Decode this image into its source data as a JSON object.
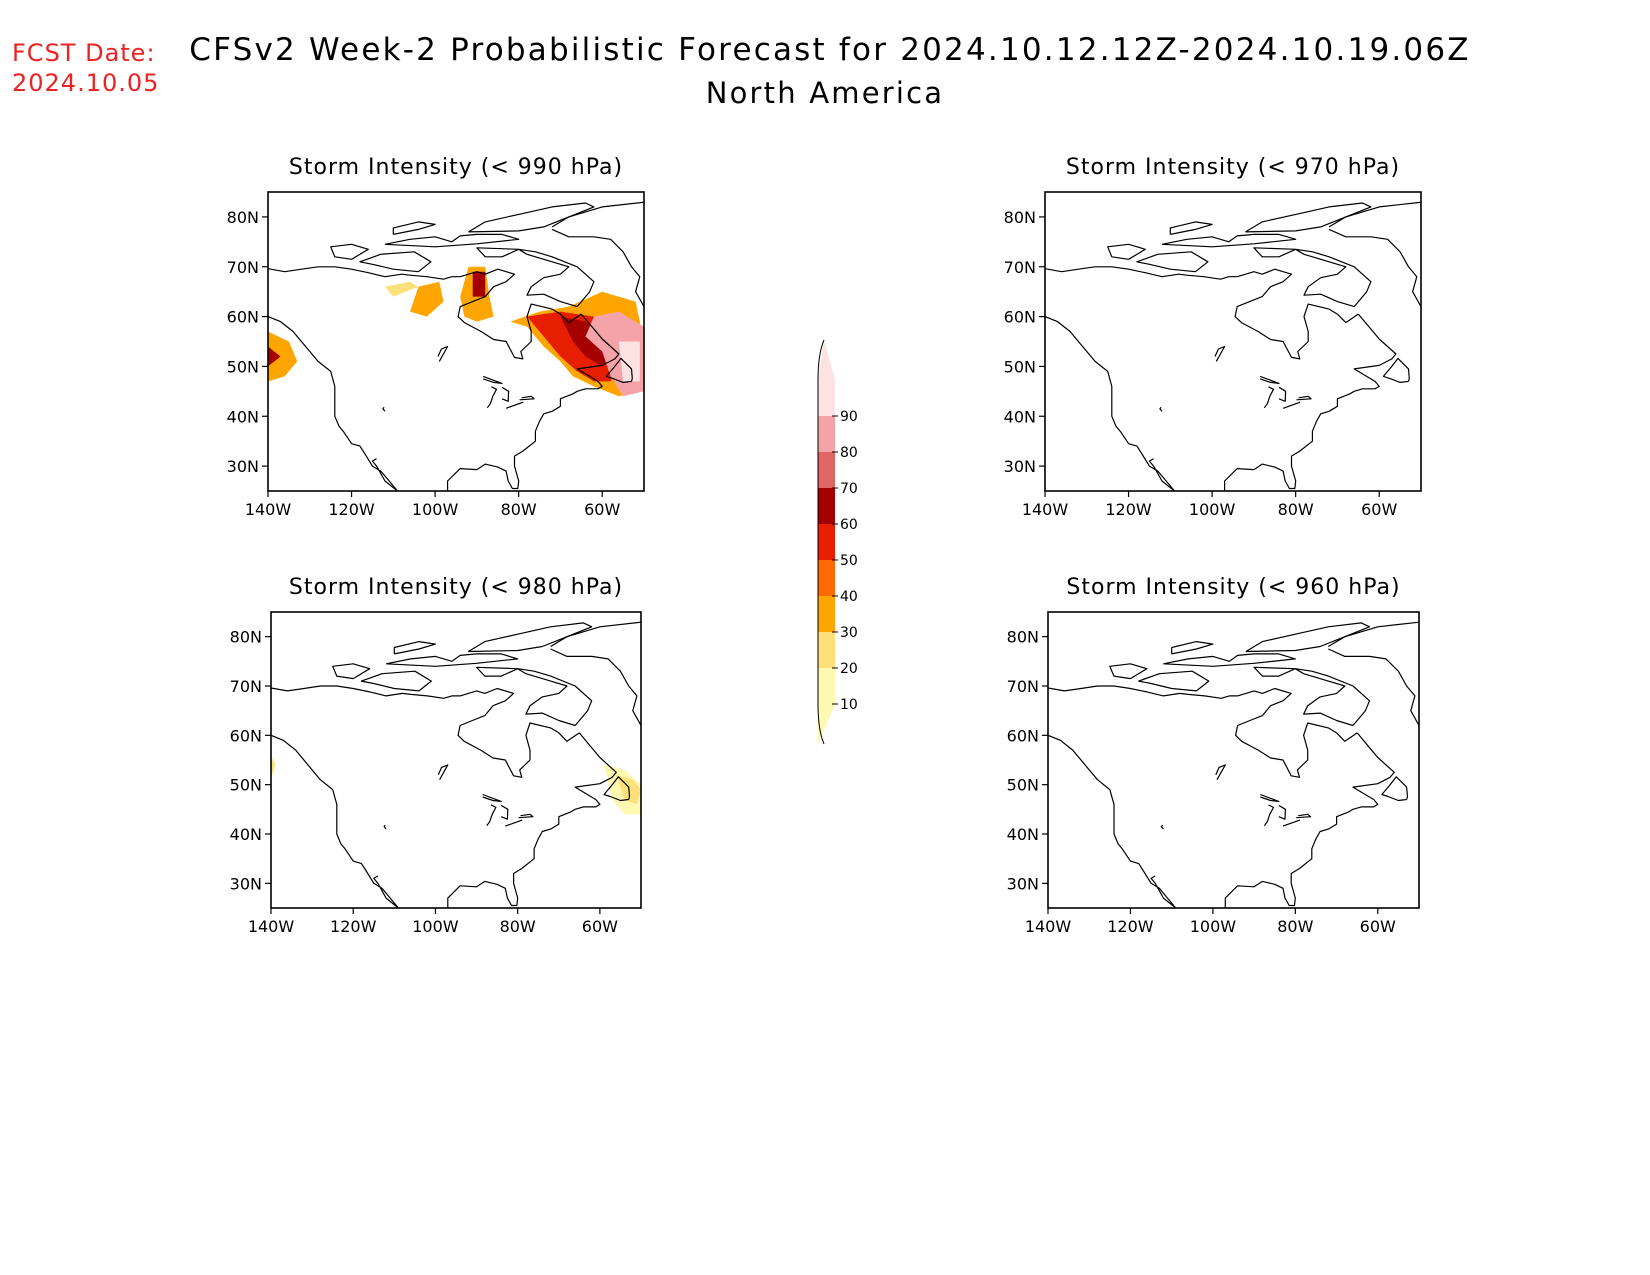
{
  "header": {
    "fcst_label": "FCST Date:",
    "fcst_date": "2024.10.05",
    "title": "CFSv2 Week-2 Probabilistic Forecast for 2024.10.12.12Z-2024.10.19.06Z",
    "subtitle": "North America"
  },
  "panels": [
    {
      "title": "Storm Intensity (< 990 hPa)",
      "key": "p990"
    },
    {
      "title": "Storm Intensity (< 970 hPa)",
      "key": "p970"
    },
    {
      "title": "Storm Intensity (< 980 hPa)",
      "key": "p980"
    },
    {
      "title": "Storm Intensity (< 960 hPa)",
      "key": "p960"
    }
  ],
  "axes": {
    "lat_labels": [
      "80N",
      "70N",
      "60N",
      "50N",
      "40N",
      "30N"
    ],
    "lon_labels": [
      "140W",
      "120W",
      "100W",
      "80W",
      "60W"
    ],
    "lat_values": [
      80,
      70,
      60,
      50,
      40,
      30
    ],
    "lon_values": [
      -140,
      -120,
      -100,
      -80,
      -60
    ],
    "lat_range": [
      25,
      85
    ],
    "lon_range": [
      -140,
      -50
    ]
  },
  "colorbar": {
    "labels": [
      "10",
      "20",
      "30",
      "40",
      "50",
      "60",
      "70",
      "80",
      "90"
    ],
    "colors": [
      "#fff8b0",
      "#fde07a",
      "#ffa500",
      "#ff6a00",
      "#e81e00",
      "#a50000",
      "#e06666",
      "#f4a3a8",
      "#fde2e4"
    ]
  },
  "probability_areas": {
    "p990": [
      {
        "level": 30,
        "poly": [
          [
            -140,
            57
          ],
          [
            -135,
            55
          ],
          [
            -133,
            51
          ],
          [
            -136,
            48
          ],
          [
            -140,
            47
          ]
        ]
      },
      {
        "level": 60,
        "poly": [
          [
            -140,
            54
          ],
          [
            -137,
            52
          ],
          [
            -140,
            50
          ]
        ]
      },
      {
        "level": 20,
        "poly": [
          [
            -112,
            66
          ],
          [
            -106,
            67
          ],
          [
            -104,
            66
          ],
          [
            -110,
            64
          ]
        ]
      },
      {
        "level": 30,
        "poly": [
          [
            -104,
            66
          ],
          [
            -99,
            67
          ],
          [
            -98,
            63
          ],
          [
            -102,
            60
          ],
          [
            -106,
            61
          ]
        ]
      },
      {
        "level": 30,
        "poly": [
          [
            -92,
            70
          ],
          [
            -88,
            70
          ],
          [
            -87,
            64
          ],
          [
            -86,
            60
          ],
          [
            -90,
            59
          ],
          [
            -93,
            60
          ],
          [
            -94,
            64
          ]
        ]
      },
      {
        "level": 60,
        "poly": [
          [
            -91,
            69
          ],
          [
            -88,
            69
          ],
          [
            -88,
            64
          ],
          [
            -91,
            64
          ]
        ]
      },
      {
        "level": 30,
        "poly": [
          [
            -82,
            59
          ],
          [
            -75,
            61
          ],
          [
            -68,
            62
          ],
          [
            -60,
            65
          ],
          [
            -52,
            63
          ],
          [
            -50,
            55
          ],
          [
            -51,
            45
          ],
          [
            -56,
            44
          ],
          [
            -62,
            46
          ],
          [
            -67,
            48
          ],
          [
            -70,
            51
          ],
          [
            -74,
            54
          ],
          [
            -78,
            58
          ]
        ]
      },
      {
        "level": 50,
        "poly": [
          [
            -78,
            60
          ],
          [
            -70,
            61
          ],
          [
            -62,
            60
          ],
          [
            -56,
            57
          ],
          [
            -56,
            53
          ],
          [
            -58,
            47
          ],
          [
            -62,
            47
          ],
          [
            -66,
            49
          ],
          [
            -70,
            52
          ],
          [
            -74,
            56
          ]
        ]
      },
      {
        "level": 60,
        "poly": [
          [
            -70,
            60
          ],
          [
            -64,
            59
          ],
          [
            -58,
            56
          ],
          [
            -56,
            52
          ],
          [
            -60,
            50
          ],
          [
            -64,
            52
          ],
          [
            -67,
            55
          ]
        ]
      },
      {
        "level": 80,
        "poly": [
          [
            -62,
            60
          ],
          [
            -56,
            61
          ],
          [
            -50,
            58
          ],
          [
            -50,
            45
          ],
          [
            -55,
            44
          ],
          [
            -58,
            48
          ],
          [
            -60,
            53
          ],
          [
            -64,
            56
          ]
        ]
      },
      {
        "level": 90,
        "poly": [
          [
            -56,
            55
          ],
          [
            -51,
            55
          ],
          [
            -51,
            47
          ],
          [
            -55,
            47
          ]
        ]
      }
    ],
    "p970": [],
    "p980": [
      {
        "level": 20,
        "poly": [
          [
            -140,
            56
          ],
          [
            -139,
            54
          ],
          [
            -140,
            51
          ]
        ]
      },
      {
        "level": 10,
        "poly": [
          [
            -59,
            54
          ],
          [
            -54,
            53
          ],
          [
            -50,
            50
          ],
          [
            -50,
            44
          ],
          [
            -54,
            44
          ],
          [
            -57,
            47
          ]
        ]
      },
      {
        "level": 20,
        "poly": [
          [
            -56,
            52
          ],
          [
            -52,
            51
          ],
          [
            -50,
            49
          ],
          [
            -51,
            46
          ],
          [
            -54,
            47
          ]
        ]
      }
    ],
    "p960": []
  }
}
